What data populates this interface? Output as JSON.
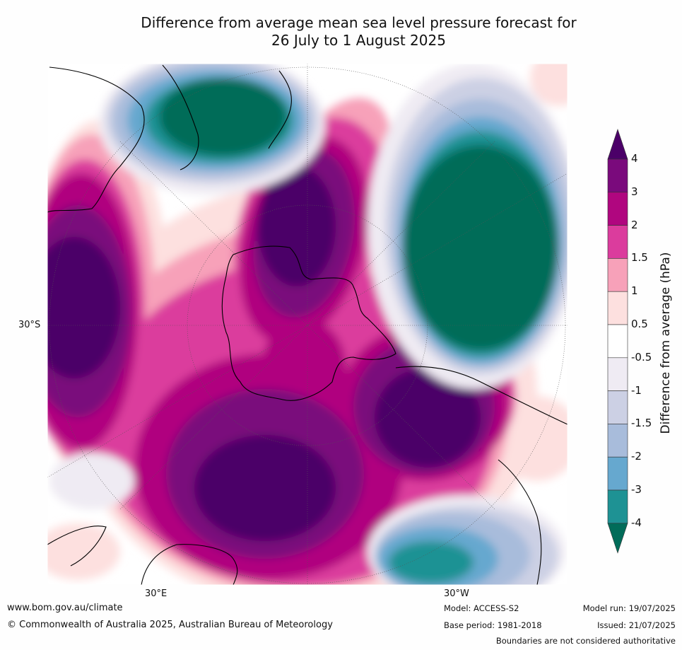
{
  "title_line1": "Difference from average mean sea level pressure forecast for",
  "title_line2": "26 July to 1 August 2025",
  "map": {
    "lat_label": "30°S",
    "lon_label_east": "30°E",
    "lon_label_west": "30°W"
  },
  "colorbar": {
    "label": "Difference from average (hPa)",
    "ticks": [
      "4",
      "3",
      "2",
      "1.5",
      "1",
      "0.5",
      "-0.5",
      "-1",
      "-1.5",
      "-2",
      "-3",
      "-4"
    ],
    "colors": {
      "above_4": "#4b0068",
      "3_to_4": "#7a0a7c",
      "2_to_3": "#b0067f",
      "1.5_to_2": "#db3c9d",
      "1_to_1.5": "#f7a1b9",
      "0.5_to_1": "#fde0df",
      "neutral": "#ffffff",
      "-1_to_-0.5": "#efebf3",
      "-1.5_to_-1": "#ccd0e4",
      "-2_to_-1.5": "#a8bcdb",
      "-3_to_-2": "#66a8cf",
      "-4_to_-3": "#1e9294",
      "below_-4": "#016c59"
    }
  },
  "footer": {
    "url": "www.bom.gov.au/climate",
    "copyright": "© Commonwealth of Australia 2025, Australian Bureau of Meteorology",
    "model": "Model: ACCESS-S2",
    "base_period": "Base period: 1981-2018",
    "model_run": "Model run: 19/07/2025",
    "issued": "Issued: 21/07/2025",
    "disclaimer": "Boundaries are not considered authoritative"
  }
}
